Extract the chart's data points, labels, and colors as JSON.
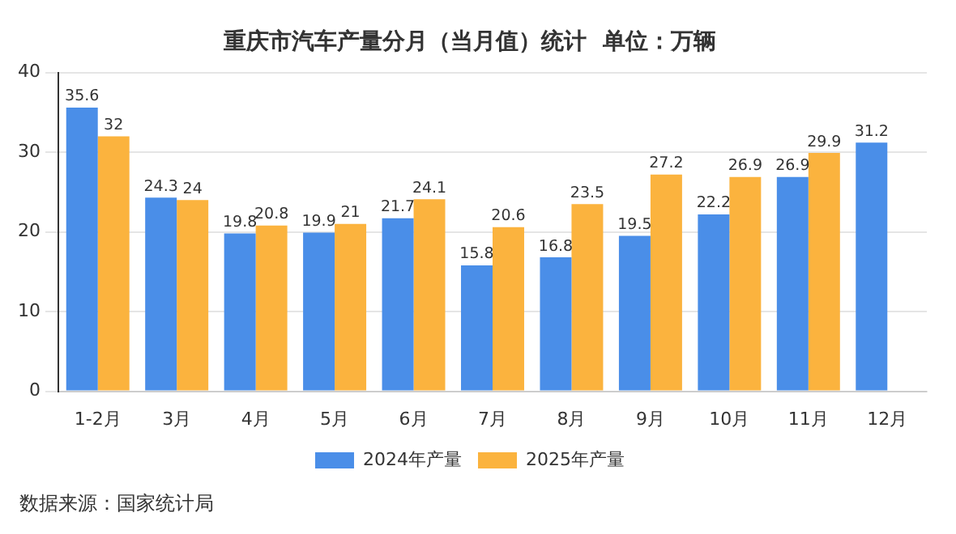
{
  "chart_data": {
    "type": "bar",
    "title": "重庆市汽车产量分月（当月值）统计  单位：万辆",
    "categories": [
      "1-2月",
      "3月",
      "4月",
      "5月",
      "6月",
      "7月",
      "8月",
      "9月",
      "10月",
      "11月",
      "12月"
    ],
    "series": [
      {
        "name": "2024年产量",
        "color": "#4a8ee8",
        "values": [
          35.6,
          24.3,
          19.8,
          19.9,
          21.7,
          15.8,
          16.8,
          19.5,
          22.2,
          26.9,
          31.2
        ]
      },
      {
        "name": "2025年产量",
        "color": "#fbb33e",
        "values": [
          32,
          24,
          20.8,
          21,
          24.1,
          20.6,
          23.5,
          27.2,
          26.9,
          29.9,
          null
        ]
      }
    ],
    "ylim": [
      0,
      40
    ],
    "yticks": [
      0,
      10,
      20,
      30,
      40
    ],
    "grid": "y",
    "legend": "bottom",
    "data_labels": true,
    "annotations": [
      "数据来源：国家统计局"
    ]
  }
}
